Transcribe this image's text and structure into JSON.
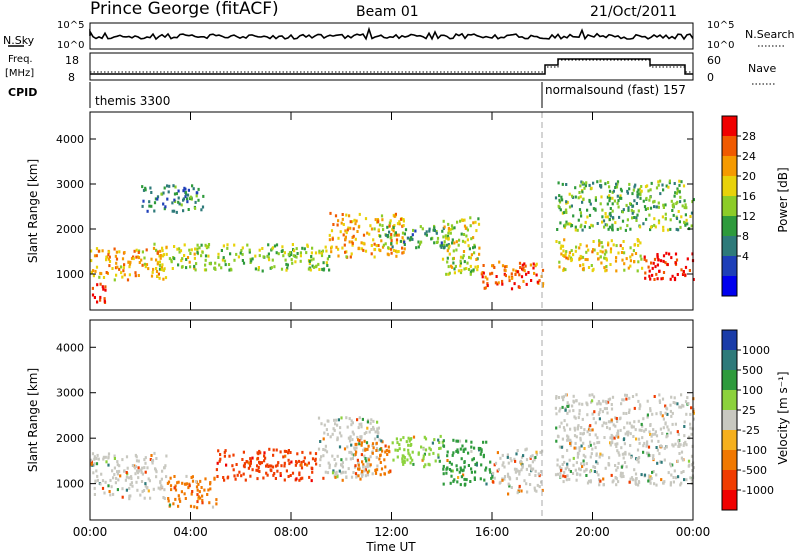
{
  "header": {
    "station": "Prince George (fitACF)",
    "beam": "Beam 01",
    "date": "21/Oct/2011"
  },
  "noise_panel": {
    "left_label": "N.Sky",
    "right_label": "N.Search",
    "tick_top": "10^5",
    "tick_bottom": "10^0"
  },
  "freq_panel": {
    "left_label_1": "Freq.",
    "left_label_2": "[MHz]",
    "left_ticks": [
      "18",
      "8"
    ],
    "right_ticks": [
      "60",
      "0"
    ],
    "right_label": "Nave"
  },
  "cpid": {
    "label": "CPID",
    "segments": [
      {
        "text": "themis 3300",
        "start_hour": 0
      },
      {
        "text": "normalsound (fast) 157",
        "start_hour": 18
      }
    ]
  },
  "colorbars": {
    "power": {
      "title": "Power [dB]",
      "tick_labels": [
        "28",
        "24",
        "20",
        "16",
        "12",
        "8",
        "4"
      ],
      "colors": [
        "#f00000",
        "#f05a00",
        "#f59a00",
        "#e8d20a",
        "#8ccc28",
        "#2e9a3c",
        "#2e7a7a",
        "#1e3fb8",
        "#0000ee"
      ]
    },
    "velocity": {
      "title": "Velocity [m s⁻¹]",
      "tick_labels": [
        "1000",
        "500",
        "100",
        "25",
        "-25",
        "-100",
        "-500",
        "-1000"
      ],
      "colors": [
        "#1a3ca8",
        "#2e7a7a",
        "#2e9a3c",
        "#8cd23c",
        "#c8c8c0",
        "#f5b01e",
        "#f07800",
        "#f03c00",
        "#f00000"
      ]
    }
  },
  "chart_data": [
    {
      "type": "heatmap",
      "panel": "power",
      "ylabel": "Slant Range [km]",
      "ylim": [
        200,
        4600
      ],
      "y_ticks": [
        "4000",
        "3000",
        "2000",
        "1000"
      ],
      "xlim_hours": [
        0,
        24
      ],
      "scale_label": "Power [dB]",
      "bands": [
        {
          "t0": 0.0,
          "t1": 3.0,
          "r0": 900,
          "r1": 1600,
          "v": 20
        },
        {
          "t0": 0.0,
          "t1": 0.6,
          "r0": 400,
          "r1": 900,
          "v": 28
        },
        {
          "t0": 2.5,
          "t1": 4.5,
          "r0": 1100,
          "r1": 1700,
          "v": 16
        },
        {
          "t0": 4.5,
          "t1": 9.5,
          "r0": 1100,
          "r1": 1700,
          "v": 14
        },
        {
          "t0": 2.0,
          "t1": 4.5,
          "r0": 2400,
          "r1": 3000,
          "v": 8
        },
        {
          "t0": 9.5,
          "t1": 12.5,
          "r0": 1400,
          "r1": 2400,
          "v": 20
        },
        {
          "t0": 11.5,
          "t1": 14.5,
          "r0": 1600,
          "r1": 2100,
          "v": 10
        },
        {
          "t0": 14.0,
          "t1": 15.5,
          "r0": 1000,
          "r1": 2300,
          "v": 16
        },
        {
          "t0": 15.5,
          "t1": 18.0,
          "r0": 700,
          "r1": 1300,
          "v": 24
        },
        {
          "t0": 18.5,
          "t1": 22.0,
          "r0": 1100,
          "r1": 1800,
          "v": 18
        },
        {
          "t0": 22.0,
          "t1": 24.0,
          "r0": 900,
          "r1": 1500,
          "v": 28
        },
        {
          "t0": 18.5,
          "t1": 24.0,
          "r0": 2000,
          "r1": 3100,
          "v": 12
        }
      ]
    },
    {
      "type": "heatmap",
      "panel": "velocity",
      "ylabel": "Slant Range [km]",
      "ylim": [
        200,
        4600
      ],
      "y_ticks": [
        "4000",
        "3000",
        "2000",
        "1000"
      ],
      "xlim_hours": [
        0,
        24
      ],
      "scale_label": "Velocity [m s⁻¹]",
      "bands": [
        {
          "t0": 0.0,
          "t1": 3.0,
          "r0": 700,
          "r1": 1700,
          "v": 0
        },
        {
          "t0": 3.0,
          "t1": 5.0,
          "r0": 500,
          "r1": 1200,
          "v": -300
        },
        {
          "t0": 5.0,
          "t1": 9.0,
          "r0": 1100,
          "r1": 1800,
          "v": -500
        },
        {
          "t0": 9.0,
          "t1": 11.5,
          "r0": 1100,
          "r1": 2500,
          "v": 0
        },
        {
          "t0": 10.5,
          "t1": 12.0,
          "r0": 1200,
          "r1": 2000,
          "v": -100
        },
        {
          "t0": 12.0,
          "t1": 14.0,
          "r0": 1400,
          "r1": 2100,
          "v": 50
        },
        {
          "t0": 14.0,
          "t1": 16.0,
          "r0": 1000,
          "r1": 2000,
          "v": 60
        },
        {
          "t0": 16.0,
          "t1": 18.0,
          "r0": 800,
          "r1": 1800,
          "v": 0
        },
        {
          "t0": 18.5,
          "t1": 24.0,
          "r0": 1000,
          "r1": 3000,
          "v": 0
        }
      ]
    }
  ],
  "time_axis": {
    "tick_labels": [
      "00:00",
      "04:00",
      "08:00",
      "12:00",
      "16:00",
      "20:00",
      "00:00"
    ],
    "label": "Time UT"
  }
}
